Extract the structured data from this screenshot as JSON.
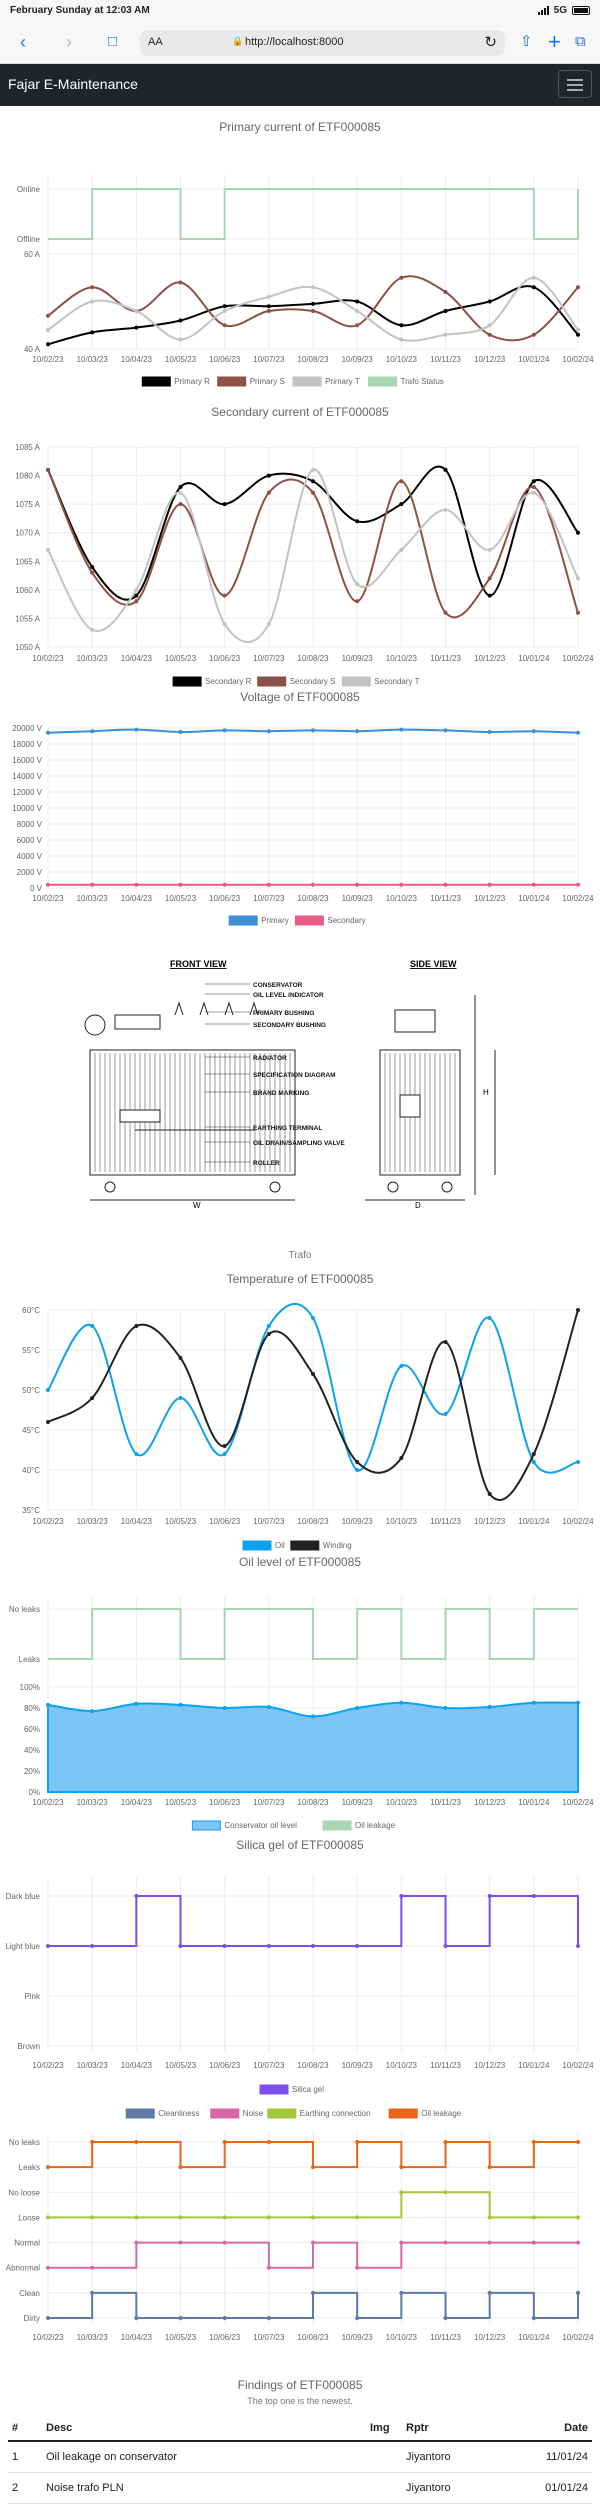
{
  "status": {
    "time": "February Sunday at 12:03 AM",
    "network": "5G"
  },
  "browser": {
    "reader_label": "AA",
    "url": "http://localhost:8000"
  },
  "navbar": {
    "brand": "Fajar E-Maintenance"
  },
  "dates": [
    "10/02/23",
    "10/03/23",
    "10/04/23",
    "10/05/23",
    "10/06/23",
    "10/07/23",
    "10/08/23",
    "10/09/23",
    "10/10/23",
    "10/11/23",
    "10/12/23",
    "10/01/24",
    "10/02/24"
  ],
  "colors": {
    "black": "#000000",
    "brown": "#8d5146",
    "gray": "#c3c3c3",
    "green": "#a9d5b2",
    "blue": "#3b8fd5",
    "pink": "#e85c84",
    "cyan": "#0da2f0",
    "purple": "#7d4ee8",
    "slate": "#5f7aa6",
    "magenta": "#d667a8",
    "lime": "#a4c63a",
    "orange": "#e8651a"
  },
  "chart_data": [
    {
      "type": "line",
      "title": "Primary current of ETF000085",
      "y_ticks": [
        "60 A",
        "40 A"
      ],
      "status_ticks": [
        "Online",
        "Offline"
      ],
      "ylim": [
        40,
        60
      ],
      "series": [
        {
          "name": "Primary R",
          "values": [
            41,
            43.5,
            44.5,
            46,
            49,
            49,
            49.5,
            50,
            45,
            48,
            50,
            53,
            43
          ]
        },
        {
          "name": "Primary S",
          "values": [
            47,
            53,
            48,
            54,
            45,
            48,
            48,
            45,
            55,
            52,
            43,
            43,
            53
          ]
        },
        {
          "name": "Primary T",
          "values": [
            44,
            50,
            48,
            42,
            48,
            51,
            53,
            48,
            42,
            43,
            45,
            55,
            44
          ]
        },
        {
          "name": "Trafo Status",
          "values": [
            0,
            1,
            1,
            0,
            1,
            1,
            1,
            1,
            1,
            1,
            1,
            0,
            1
          ]
        }
      ]
    },
    {
      "type": "line",
      "title": "Secondary current of ETF000085",
      "y_ticks": [
        "1085 A",
        "1080 A",
        "1075 A",
        "1070 A",
        "1065 A",
        "1060 A",
        "1055 A",
        "1050 A"
      ],
      "ylim": [
        1050,
        1085
      ],
      "series": [
        {
          "name": "Secondary R",
          "values": [
            1081,
            1064,
            1059,
            1078,
            1075,
            1080,
            1079,
            1072,
            1075,
            1081,
            1059,
            1079,
            1070
          ]
        },
        {
          "name": "Secondary S",
          "values": [
            1081,
            1063,
            1058,
            1075,
            1059,
            1077,
            1077,
            1058,
            1079,
            1056,
            1062,
            1078,
            1056
          ]
        },
        {
          "name": "Secondary T",
          "values": [
            1067,
            1053,
            1060,
            1077,
            1054,
            1054,
            1081,
            1061,
            1067,
            1074,
            1067,
            1077,
            1062
          ]
        }
      ]
    },
    {
      "type": "line",
      "title": "Voltage of ETF000085",
      "y_ticks": [
        "20000 V",
        "18000 V",
        "16000 V",
        "14000 V",
        "12000 V",
        "10000 V",
        "8000 V",
        "6000 V",
        "4000 V",
        "2000 V",
        "0 V"
      ],
      "ylim": [
        0,
        20000
      ],
      "series": [
        {
          "name": "Primary",
          "values": [
            19400,
            19600,
            19800,
            19500,
            19700,
            19600,
            19700,
            19600,
            19800,
            19700,
            19500,
            19600,
            19400
          ]
        },
        {
          "name": "Secondary",
          "values": [
            400,
            400,
            400,
            400,
            400,
            400,
            400,
            400,
            400,
            400,
            400,
            400,
            400
          ]
        }
      ]
    },
    {
      "type": "line",
      "title": "Temperature of ETF000085",
      "y_ticks": [
        "60°C",
        "55°C",
        "50°C",
        "45°C",
        "40°C",
        "35°C"
      ],
      "ylim": [
        35,
        60
      ],
      "series": [
        {
          "name": "Oil",
          "values": [
            50,
            58,
            42,
            49,
            42,
            58,
            59,
            40,
            53,
            47,
            59,
            41,
            41
          ]
        },
        {
          "name": "Winding",
          "values": [
            46,
            49,
            58,
            54,
            43,
            57,
            52,
            41,
            41.5,
            56,
            37,
            42,
            60
          ]
        }
      ]
    },
    {
      "type": "area",
      "title": "Oil level of ETF000085",
      "y_ticks": [
        "100%",
        "80%",
        "60%",
        "40%",
        "20%",
        "0%"
      ],
      "status_ticks": [
        "No leaks",
        "Leaks"
      ],
      "ylim": [
        0,
        100
      ],
      "series": [
        {
          "name": "Conservator oil level",
          "values": [
            83,
            77,
            84,
            83,
            80,
            81,
            72,
            80,
            85,
            80,
            81,
            85,
            85
          ]
        },
        {
          "name": "Oil leakage",
          "values": [
            0,
            1,
            1,
            0,
            1,
            1,
            0,
            1,
            0,
            1,
            0,
            1,
            1
          ]
        }
      ]
    },
    {
      "type": "line",
      "title": "Silica gel of ETF000085",
      "y_ticks": [
        "Dark blue",
        "Light blue",
        "Pink",
        "Brown"
      ],
      "series": [
        {
          "name": "Silica gel",
          "values": [
            1,
            1,
            0,
            1,
            1,
            1,
            1,
            1,
            0,
            1,
            0,
            0,
            1
          ]
        }
      ]
    },
    {
      "type": "line",
      "title": "",
      "y_ticks": [
        "No leaks",
        "Leaks",
        "No loose",
        "Loose",
        "Normal",
        "Abnormal",
        "Clean",
        "Dirty"
      ],
      "series": [
        {
          "name": "Cleanliness",
          "values": [
            0,
            1,
            0,
            0,
            0,
            0,
            1,
            0,
            1,
            0,
            1,
            0,
            1
          ]
        },
        {
          "name": "Noise",
          "values": [
            0,
            0,
            1,
            1,
            1,
            0,
            1,
            0,
            1,
            1,
            1,
            1,
            1
          ]
        },
        {
          "name": "Earthing connection",
          "values": [
            0,
            0,
            0,
            0,
            0,
            0,
            0,
            0,
            1,
            1,
            0,
            0,
            0
          ]
        },
        {
          "name": "Oil leakage",
          "values": [
            0,
            1,
            1,
            0,
            1,
            1,
            0,
            1,
            0,
            1,
            0,
            1,
            1
          ]
        }
      ]
    }
  ],
  "diagram": {
    "front_view": "FRONT VIEW",
    "side_view": "SIDE VIEW",
    "labels": [
      "CONSERVATOR",
      "OIL LEVEL INDICATOR",
      "PRIMARY BUSHING",
      "SECONDARY BUSHING",
      "RADIATOR",
      "SPECIFICATION DIAGRAM",
      "BRAND MARKING",
      "EARTHING TERMINAL",
      "OIL DRAIN/SAMPLING VALVE",
      "ROLLER"
    ],
    "dim_w": "W",
    "dim_h": "H",
    "dim_d": "D",
    "caption": "Trafo"
  },
  "findings": {
    "title": "Findings of ETF000085",
    "subtitle": "The top one is the newest.",
    "headers": {
      "num": "#",
      "desc": "Desc",
      "img": "Img",
      "rptr": "Rptr",
      "date": "Date"
    },
    "rows": [
      {
        "num": "1",
        "desc": "Oil leakage on conservator",
        "img": "",
        "rptr": "Jiyantoro",
        "date": "11/01/24"
      },
      {
        "num": "2",
        "desc": "Noise trafo PLN",
        "img": "",
        "rptr": "Jiyantoro",
        "date": "01/01/24"
      }
    ]
  }
}
